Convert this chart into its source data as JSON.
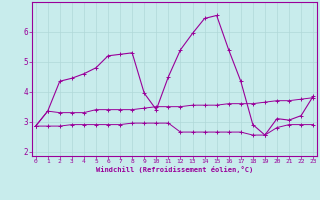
{
  "xlabel": "Windchill (Refroidissement éolien,°C)",
  "bg_color": "#c8ecec",
  "line_color": "#990099",
  "grid_color": "#b0d8d8",
  "x_ticks": [
    0,
    1,
    2,
    3,
    4,
    5,
    6,
    7,
    8,
    9,
    10,
    11,
    12,
    13,
    14,
    15,
    16,
    17,
    18,
    19,
    20,
    21,
    22,
    23
  ],
  "y_ticks": [
    2,
    3,
    4,
    5,
    6
  ],
  "xlim": [
    -0.3,
    23.3
  ],
  "ylim": [
    1.85,
    7.0
  ],
  "line1_x": [
    0,
    1,
    2,
    3,
    4,
    5,
    6,
    7,
    8,
    9,
    10,
    11,
    12,
    13,
    14,
    15,
    16,
    17,
    18,
    19,
    20,
    21,
    22,
    23
  ],
  "line1_y": [
    2.85,
    3.35,
    3.3,
    3.3,
    3.3,
    3.4,
    3.4,
    3.4,
    3.4,
    3.45,
    3.5,
    3.5,
    3.5,
    3.55,
    3.55,
    3.55,
    3.6,
    3.6,
    3.6,
    3.65,
    3.7,
    3.7,
    3.75,
    3.8
  ],
  "line2_x": [
    0,
    1,
    2,
    3,
    4,
    5,
    6,
    7,
    8,
    9,
    10,
    11,
    12,
    13,
    14,
    15,
    16,
    17,
    18,
    19,
    20,
    21,
    22,
    23
  ],
  "line2_y": [
    2.85,
    2.85,
    2.85,
    2.9,
    2.9,
    2.9,
    2.9,
    2.9,
    2.95,
    2.95,
    2.95,
    2.95,
    2.65,
    2.65,
    2.65,
    2.65,
    2.65,
    2.65,
    2.55,
    2.55,
    2.8,
    2.9,
    2.9,
    2.9
  ],
  "line3_x": [
    0,
    1,
    2,
    3,
    4,
    5,
    6,
    7,
    8,
    9,
    10,
    11,
    12,
    13,
    14,
    15,
    16,
    17,
    18,
    19,
    20,
    21,
    22,
    23
  ],
  "line3_y": [
    2.85,
    3.35,
    4.35,
    4.45,
    4.6,
    4.8,
    5.2,
    5.25,
    5.3,
    3.95,
    3.4,
    4.5,
    5.4,
    5.95,
    6.45,
    6.55,
    5.4,
    4.35,
    2.9,
    2.55,
    3.1,
    3.05,
    3.2,
    3.85
  ]
}
